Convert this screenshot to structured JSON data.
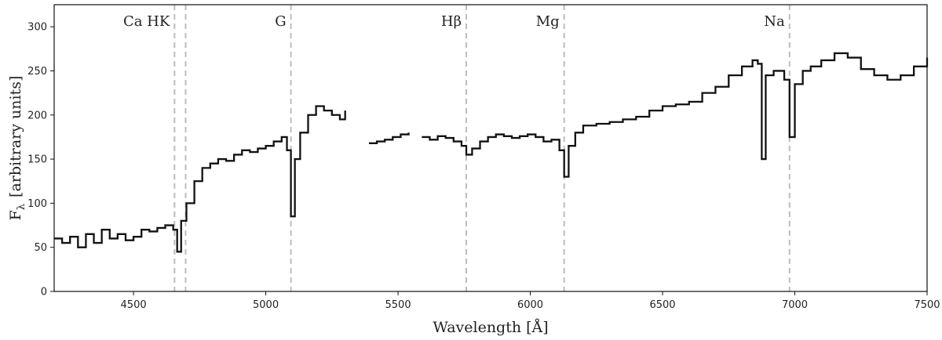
{
  "chart_data": {
    "type": "line",
    "xlabel": "Wavelength [Å]",
    "ylabel_main": "F",
    "ylabel_sub": "λ",
    "ylabel_rest": "[arbitrary units]",
    "xlim": [
      4200,
      7500
    ],
    "ylim": [
      0,
      325
    ],
    "xticks": [
      4500,
      5000,
      5500,
      6000,
      6500,
      7000,
      7500
    ],
    "yticks": [
      0,
      50,
      100,
      150,
      200,
      250,
      300
    ],
    "spectral_lines": [
      {
        "label": "Ca HK",
        "wavelengths": [
          4655,
          4697
        ],
        "label_anchor": "end"
      },
      {
        "label": "G",
        "wavelengths": [
          5095
        ],
        "label_anchor": "end"
      },
      {
        "label": "Hβ",
        "wavelengths": [
          5758
        ],
        "label_anchor": "end"
      },
      {
        "label": "Mg",
        "wavelengths": [
          6128
        ],
        "label_anchor": "end"
      },
      {
        "label": "Na",
        "wavelengths": [
          6980
        ],
        "label_anchor": "end"
      }
    ],
    "series": [
      {
        "segments": [
          {
            "x": [
              4200,
              4230,
              4260,
              4290,
              4320,
              4350,
              4380,
              4410,
              4440,
              4470,
              4500,
              4530,
              4560,
              4590,
              4620,
              4650,
              4665,
              4680,
              4700,
              4730,
              4760,
              4790,
              4820,
              4850,
              4880,
              4910,
              4940,
              4970,
              5000,
              5030,
              5060,
              5080,
              5095,
              5110,
              5130,
              5160,
              5190,
              5220,
              5250,
              5280,
              5300
            ],
            "y": [
              60,
              55,
              62,
              50,
              65,
              55,
              70,
              60,
              65,
              58,
              62,
              70,
              68,
              72,
              75,
              70,
              45,
              80,
              100,
              125,
              140,
              145,
              150,
              148,
              155,
              160,
              158,
              162,
              165,
              170,
              175,
              160,
              85,
              150,
              180,
              200,
              210,
              205,
              200,
              195,
              205
            ]
          },
          {
            "x": [
              5390,
              5420,
              5450,
              5480,
              5510,
              5540
            ],
            "y": [
              168,
              170,
              172,
              175,
              178,
              180
            ]
          },
          {
            "x": [
              5590,
              5620,
              5650,
              5680,
              5710,
              5740,
              5758,
              5780,
              5810,
              5840,
              5870,
              5900,
              5930,
              5960,
              5990,
              6020,
              6050,
              6080,
              6110,
              6128,
              6145,
              6170,
              6200,
              6250,
              6300,
              6350,
              6400,
              6450,
              6500,
              6550,
              6600,
              6650,
              6700,
              6750,
              6800,
              6840,
              6860,
              6875,
              6890,
              6920,
              6960,
              6980,
              7000,
              7030,
              7060,
              7100,
              7150,
              7200,
              7250,
              7300,
              7350,
              7400,
              7450,
              7500
            ],
            "y": [
              175,
              172,
              176,
              174,
              170,
              165,
              155,
              162,
              170,
              175,
              178,
              176,
              174,
              176,
              178,
              175,
              170,
              172,
              160,
              130,
              165,
              180,
              188,
              190,
              192,
              195,
              198,
              205,
              210,
              212,
              215,
              225,
              232,
              245,
              255,
              262,
              258,
              150,
              245,
              250,
              240,
              175,
              235,
              250,
              255,
              262,
              270,
              265,
              252,
              245,
              240,
              245,
              255,
              265
            ]
          }
        ]
      }
    ]
  }
}
